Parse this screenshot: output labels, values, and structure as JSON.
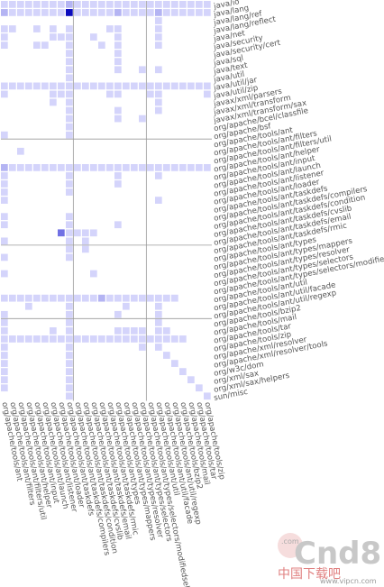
{
  "chart_data": {
    "type": "heatmap",
    "title": "",
    "rows": [
      "java/io",
      "java/lang",
      "java/lang/ref",
      "java/lang/reflect",
      "java/net",
      "java/security",
      "java/security/cert",
      "java/sql",
      "java/text",
      "java/util",
      "java/util/jar",
      "java/util/zip",
      "javax/xml/parsers",
      "javax/xml/transform",
      "javax/xml/transform/sax",
      "org/apache/bcel/classfile",
      "org/apache/bsf",
      "org/apache/tools/ant",
      "org/apache/tools/ant/filters",
      "org/apache/tools/ant/filters/util",
      "org/apache/tools/ant/helper",
      "org/apache/tools/ant/input",
      "org/apache/tools/ant/launch",
      "org/apache/tools/ant/listener",
      "org/apache/tools/ant/loader",
      "org/apache/tools/ant/taskdefs",
      "org/apache/tools/ant/taskdefs/compilers",
      "org/apache/tools/ant/taskdefs/condition",
      "org/apache/tools/ant/taskdefs/cvslib",
      "org/apache/tools/ant/taskdefs/email",
      "org/apache/tools/ant/taskdefs/rmic",
      "org/apache/tools/ant/types",
      "org/apache/tools/ant/types/mappers",
      "org/apache/tools/ant/types/resolver",
      "org/apache/tools/ant/types/selectors",
      "org/apache/tools/ant/types/selectors/modifiedselector",
      "org/apache/tools/ant/util",
      "org/apache/tools/ant/util/facade",
      "org/apache/tools/ant/util/regexp",
      "org/apache/tools/bzip2",
      "org/apache/tools/mail",
      "org/apache/tools/tar",
      "org/apache/tools/zip",
      "org/apache/xml/resolver",
      "org/apache/xml/resolver/tools",
      "org/w3c/dom",
      "org/xml/sax",
      "org/xml/sax/helpers",
      "sun/misc"
    ],
    "columns": [
      "org/apache/tools/ant",
      "org/apache/tools/ant/filters",
      "org/apache/tools/ant/filters/util",
      "org/apache/tools/ant/helper",
      "org/apache/tools/ant/input",
      "org/apache/tools/ant/launch",
      "org/apache/tools/ant/listener",
      "org/apache/tools/ant/loader",
      "org/apache/tools/ant/taskdefs",
      "org/apache/tools/ant/taskdefs/compilers",
      "org/apache/tools/ant/taskdefs/condition",
      "org/apache/tools/ant/taskdefs/cvslib",
      "org/apache/tools/ant/taskdefs/email",
      "org/apache/tools/ant/taskdefs/rmic",
      "org/apache/tools/ant/types",
      "org/apache/tools/ant/types/mappers",
      "org/apache/tools/ant/types/resolver",
      "org/apache/tools/ant/types/selectors",
      "org/apache/tools/ant/types/selectors/modifiedselector",
      "org/apache/tools/ant/util",
      "org/apache/tools/ant/util/facade",
      "org/apache/tools/ant/util/regexp",
      "org/apache/tools/bzip2",
      "org/apache/tools/mail",
      "org/apache/tools/tar",
      "org/apache/tools/zip"
    ],
    "level_colors": [
      "#d4d4fb",
      "#b4b4f3",
      "#7070e4",
      "#0b0bbd"
    ],
    "separator_color": "#9a9a9a",
    "row_separators_after": [
      16,
      29,
      38
    ],
    "col_separators_after": [
      8,
      17
    ],
    "cells": [
      [
        0,
        0,
        1
      ],
      [
        0,
        1,
        1
      ],
      [
        0,
        2,
        1
      ],
      [
        0,
        3,
        1
      ],
      [
        0,
        4,
        1
      ],
      [
        0,
        5,
        1
      ],
      [
        0,
        6,
        1
      ],
      [
        0,
        7,
        1
      ],
      [
        0,
        8,
        2
      ],
      [
        0,
        9,
        1
      ],
      [
        0,
        10,
        1
      ],
      [
        0,
        11,
        1
      ],
      [
        0,
        12,
        1
      ],
      [
        0,
        13,
        1
      ],
      [
        0,
        14,
        1
      ],
      [
        0,
        15,
        1
      ],
      [
        0,
        16,
        1
      ],
      [
        0,
        17,
        1
      ],
      [
        0,
        18,
        1
      ],
      [
        0,
        19,
        1
      ],
      [
        0,
        20,
        1
      ],
      [
        0,
        21,
        1
      ],
      [
        0,
        22,
        1
      ],
      [
        0,
        23,
        1
      ],
      [
        0,
        24,
        1
      ],
      [
        0,
        25,
        1
      ],
      [
        1,
        0,
        2
      ],
      [
        1,
        1,
        1
      ],
      [
        1,
        2,
        1
      ],
      [
        1,
        3,
        1
      ],
      [
        1,
        4,
        1
      ],
      [
        1,
        5,
        1
      ],
      [
        1,
        6,
        1
      ],
      [
        1,
        7,
        1
      ],
      [
        1,
        8,
        4
      ],
      [
        1,
        9,
        1
      ],
      [
        1,
        10,
        1
      ],
      [
        1,
        11,
        1
      ],
      [
        1,
        12,
        1
      ],
      [
        1,
        13,
        1
      ],
      [
        1,
        14,
        2
      ],
      [
        1,
        15,
        1
      ],
      [
        1,
        16,
        1
      ],
      [
        1,
        17,
        1
      ],
      [
        1,
        18,
        1
      ],
      [
        1,
        19,
        2
      ],
      [
        1,
        20,
        1
      ],
      [
        1,
        21,
        1
      ],
      [
        1,
        22,
        1
      ],
      [
        1,
        23,
        1
      ],
      [
        1,
        24,
        1
      ],
      [
        1,
        25,
        1
      ],
      [
        2,
        19,
        1
      ],
      [
        3,
        0,
        1
      ],
      [
        3,
        1,
        1
      ],
      [
        3,
        4,
        1
      ],
      [
        3,
        6,
        1
      ],
      [
        3,
        8,
        1
      ],
      [
        3,
        13,
        1
      ],
      [
        3,
        14,
        1
      ],
      [
        3,
        19,
        1
      ],
      [
        4,
        0,
        1
      ],
      [
        4,
        6,
        1
      ],
      [
        4,
        7,
        1
      ],
      [
        4,
        8,
        1
      ],
      [
        4,
        11,
        1
      ],
      [
        4,
        14,
        1
      ],
      [
        4,
        19,
        1
      ],
      [
        5,
        0,
        1
      ],
      [
        5,
        4,
        1
      ],
      [
        5,
        5,
        1
      ],
      [
        5,
        8,
        1
      ],
      [
        5,
        12,
        1
      ],
      [
        5,
        14,
        1
      ],
      [
        5,
        19,
        1
      ],
      [
        6,
        8,
        1
      ],
      [
        6,
        14,
        1
      ],
      [
        7,
        8,
        1
      ],
      [
        7,
        14,
        1
      ],
      [
        8,
        8,
        1
      ],
      [
        8,
        14,
        1
      ],
      [
        8,
        17,
        1
      ],
      [
        8,
        19,
        1
      ],
      [
        9,
        8,
        1
      ],
      [
        10,
        0,
        1
      ],
      [
        10,
        1,
        1
      ],
      [
        10,
        2,
        1
      ],
      [
        10,
        3,
        1
      ],
      [
        10,
        4,
        1
      ],
      [
        10,
        5,
        1
      ],
      [
        10,
        6,
        1
      ],
      [
        10,
        7,
        1
      ],
      [
        10,
        8,
        1
      ],
      [
        10,
        9,
        1
      ],
      [
        10,
        10,
        1
      ],
      [
        10,
        11,
        1
      ],
      [
        10,
        12,
        1
      ],
      [
        10,
        13,
        1
      ],
      [
        10,
        14,
        1
      ],
      [
        10,
        15,
        1
      ],
      [
        10,
        16,
        1
      ],
      [
        10,
        17,
        1
      ],
      [
        10,
        18,
        1
      ],
      [
        10,
        19,
        1
      ],
      [
        10,
        20,
        1
      ],
      [
        10,
        21,
        1
      ],
      [
        10,
        22,
        1
      ],
      [
        10,
        23,
        1
      ],
      [
        10,
        24,
        1
      ],
      [
        10,
        25,
        1
      ],
      [
        11,
        0,
        1
      ],
      [
        11,
        6,
        1
      ],
      [
        11,
        7,
        1
      ],
      [
        11,
        8,
        1
      ],
      [
        11,
        13,
        1
      ],
      [
        11,
        14,
        1
      ],
      [
        11,
        18,
        1
      ],
      [
        11,
        19,
        1
      ],
      [
        11,
        25,
        1
      ],
      [
        12,
        6,
        1
      ],
      [
        12,
        8,
        1
      ],
      [
        12,
        19,
        1
      ],
      [
        13,
        8,
        1
      ],
      [
        13,
        14,
        1
      ],
      [
        13,
        19,
        1
      ],
      [
        14,
        8,
        1
      ],
      [
        14,
        14,
        1
      ],
      [
        14,
        17,
        1
      ],
      [
        15,
        8,
        1
      ],
      [
        16,
        0,
        1
      ],
      [
        16,
        8,
        1
      ],
      [
        18,
        2,
        1
      ],
      [
        20,
        0,
        2
      ],
      [
        20,
        1,
        1
      ],
      [
        20,
        2,
        1
      ],
      [
        20,
        3,
        1
      ],
      [
        20,
        4,
        1
      ],
      [
        20,
        5,
        1
      ],
      [
        20,
        6,
        1
      ],
      [
        20,
        7,
        1
      ],
      [
        20,
        8,
        1
      ],
      [
        20,
        9,
        1
      ],
      [
        20,
        10,
        1
      ],
      [
        20,
        11,
        1
      ],
      [
        20,
        12,
        1
      ],
      [
        20,
        13,
        1
      ],
      [
        20,
        14,
        1
      ],
      [
        20,
        15,
        1
      ],
      [
        20,
        16,
        1
      ],
      [
        20,
        17,
        1
      ],
      [
        20,
        18,
        1
      ],
      [
        20,
        19,
        1
      ],
      [
        20,
        20,
        1
      ],
      [
        20,
        21,
        1
      ],
      [
        20,
        22,
        1
      ],
      [
        20,
        23,
        1
      ],
      [
        20,
        24,
        1
      ],
      [
        20,
        25,
        1
      ],
      [
        21,
        0,
        1
      ],
      [
        21,
        8,
        1
      ],
      [
        21,
        14,
        1
      ],
      [
        21,
        19,
        1
      ],
      [
        22,
        0,
        1
      ],
      [
        22,
        8,
        1
      ],
      [
        22,
        14,
        1
      ],
      [
        23,
        0,
        1
      ],
      [
        23,
        8,
        1
      ],
      [
        24,
        0,
        1
      ],
      [
        24,
        19,
        1
      ],
      [
        26,
        0,
        1
      ],
      [
        26,
        8,
        1
      ],
      [
        27,
        0,
        1
      ],
      [
        27,
        8,
        1
      ],
      [
        27,
        14,
        1
      ],
      [
        28,
        7,
        3
      ],
      [
        28,
        8,
        1
      ],
      [
        28,
        9,
        1
      ],
      [
        28,
        10,
        1
      ],
      [
        28,
        11,
        1
      ],
      [
        29,
        0,
        1
      ],
      [
        29,
        8,
        1
      ],
      [
        29,
        10,
        1
      ],
      [
        30,
        8,
        1
      ],
      [
        30,
        10,
        1
      ],
      [
        31,
        0,
        1
      ],
      [
        31,
        8,
        1
      ],
      [
        33,
        0,
        1
      ],
      [
        33,
        11,
        1
      ],
      [
        36,
        0,
        1
      ],
      [
        36,
        1,
        1
      ],
      [
        36,
        2,
        1
      ],
      [
        36,
        3,
        1
      ],
      [
        36,
        4,
        1
      ],
      [
        36,
        5,
        1
      ],
      [
        36,
        6,
        1
      ],
      [
        36,
        7,
        1
      ],
      [
        36,
        8,
        1
      ],
      [
        36,
        9,
        1
      ],
      [
        36,
        10,
        1
      ],
      [
        36,
        11,
        1
      ],
      [
        36,
        12,
        2
      ],
      [
        36,
        13,
        1
      ],
      [
        36,
        14,
        1
      ],
      [
        36,
        15,
        1
      ],
      [
        36,
        16,
        1
      ],
      [
        36,
        17,
        1
      ],
      [
        36,
        18,
        1
      ],
      [
        36,
        19,
        1
      ],
      [
        36,
        20,
        1
      ],
      [
        36,
        21,
        1
      ],
      [
        37,
        3,
        1
      ],
      [
        37,
        8,
        1
      ],
      [
        37,
        15,
        1
      ],
      [
        37,
        19,
        1
      ],
      [
        38,
        0,
        1
      ],
      [
        38,
        8,
        1
      ],
      [
        38,
        14,
        1
      ],
      [
        38,
        19,
        1
      ],
      [
        39,
        0,
        1
      ],
      [
        39,
        8,
        1
      ],
      [
        39,
        19,
        1
      ],
      [
        40,
        0,
        1
      ],
      [
        40,
        6,
        1
      ],
      [
        40,
        8,
        1
      ],
      [
        40,
        14,
        1
      ],
      [
        40,
        15,
        1
      ],
      [
        40,
        16,
        1
      ],
      [
        40,
        17,
        1
      ],
      [
        40,
        19,
        1
      ],
      [
        40,
        20,
        1
      ],
      [
        41,
        0,
        1
      ],
      [
        41,
        1,
        1
      ],
      [
        41,
        2,
        1
      ],
      [
        41,
        3,
        1
      ],
      [
        41,
        4,
        1
      ],
      [
        41,
        5,
        1
      ],
      [
        41,
        6,
        1
      ],
      [
        41,
        7,
        1
      ],
      [
        41,
        8,
        1
      ],
      [
        41,
        9,
        1
      ],
      [
        41,
        10,
        1
      ],
      [
        41,
        11,
        1
      ],
      [
        41,
        12,
        1
      ],
      [
        41,
        13,
        1
      ],
      [
        41,
        14,
        1
      ],
      [
        41,
        15,
        1
      ],
      [
        41,
        16,
        1
      ],
      [
        41,
        17,
        1
      ],
      [
        41,
        18,
        1
      ],
      [
        41,
        19,
        1
      ],
      [
        41,
        20,
        1
      ],
      [
        41,
        21,
        1
      ],
      [
        41,
        22,
        1
      ],
      [
        42,
        0,
        1
      ],
      [
        42,
        8,
        1
      ],
      [
        42,
        17,
        1
      ],
      [
        42,
        19,
        1
      ],
      [
        43,
        0,
        1
      ],
      [
        43,
        8,
        1
      ],
      [
        43,
        20,
        1
      ],
      [
        44,
        0,
        1
      ],
      [
        44,
        8,
        1
      ],
      [
        44,
        21,
        1
      ],
      [
        45,
        0,
        1
      ],
      [
        45,
        8,
        1
      ],
      [
        45,
        22,
        1
      ],
      [
        46,
        0,
        1
      ],
      [
        46,
        8,
        1
      ],
      [
        46,
        23,
        1
      ],
      [
        47,
        0,
        1
      ],
      [
        47,
        8,
        1
      ],
      [
        47,
        24,
        1
      ],
      [
        48,
        8,
        1
      ],
      [
        48,
        25,
        1
      ]
    ]
  },
  "watermark": {
    "brand": "Cnd8",
    "dot_com": ".com",
    "cn_text": "中国下载吧",
    "url": "www.vipcn.com"
  }
}
